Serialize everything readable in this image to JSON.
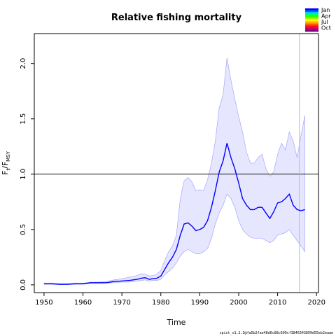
{
  "chart_data": {
    "type": "line",
    "title": "Relative fishing mortality",
    "xlabel": "Time",
    "ylabel": {
      "base": "F",
      "sub1": "t",
      "slash": "/F",
      "sub2": "MSY"
    },
    "xlim": [
      1947.5,
      2020.5
    ],
    "ylim": [
      -0.07,
      2.27
    ],
    "xticks": [
      1950,
      1960,
      1970,
      1980,
      1990,
      2000,
      2010,
      2020
    ],
    "yticks": [
      "0.0",
      "0.5",
      "1.0",
      "1.5",
      "2.0"
    ],
    "reference_line_y": 1.0,
    "vertical_line_x": 2015.6,
    "colors": {
      "series": "#0000ff",
      "band_fill": "#e6e6ff",
      "band_edge": "#9999ff",
      "refline": "#000000",
      "vline": "#bdbdbd"
    },
    "series": [
      {
        "x": [
          1950,
          1952,
          1954,
          1956,
          1958,
          1960,
          1962,
          1964,
          1966,
          1968,
          1970,
          1972,
          1974,
          1975,
          1976,
          1977,
          1978,
          1979,
          1980,
          1981,
          1982,
          1983,
          1984,
          1985,
          1986,
          1987,
          1988,
          1989,
          1990,
          1991,
          1992,
          1993,
          1994,
          1995,
          1996,
          1997,
          1998,
          1999,
          2000,
          2001,
          2002,
          2003,
          2004,
          2005,
          2006,
          2007,
          2008,
          2009,
          2010,
          2011,
          2012,
          2013,
          2014,
          2015,
          2016,
          2017
        ],
        "y": [
          0.01,
          0.01,
          0.005,
          0.005,
          0.01,
          0.01,
          0.02,
          0.02,
          0.02,
          0.03,
          0.035,
          0.04,
          0.05,
          0.06,
          0.065,
          0.05,
          0.055,
          0.06,
          0.08,
          0.14,
          0.2,
          0.25,
          0.32,
          0.45,
          0.55,
          0.56,
          0.53,
          0.49,
          0.5,
          0.52,
          0.58,
          0.7,
          0.85,
          1.02,
          1.12,
          1.28,
          1.15,
          1.05,
          0.92,
          0.78,
          0.72,
          0.68,
          0.68,
          0.7,
          0.7,
          0.65,
          0.6,
          0.66,
          0.74,
          0.75,
          0.78,
          0.82,
          0.72,
          0.68,
          0.67,
          0.68
        ]
      }
    ],
    "band": {
      "x": [
        1950,
        1952,
        1954,
        1956,
        1958,
        1960,
        1962,
        1964,
        1966,
        1968,
        1970,
        1972,
        1974,
        1975,
        1976,
        1977,
        1978,
        1979,
        1980,
        1981,
        1982,
        1983,
        1984,
        1985,
        1986,
        1987,
        1988,
        1989,
        1990,
        1991,
        1992,
        1993,
        1994,
        1995,
        1996,
        1997,
        1998,
        1999,
        2000,
        2001,
        2002,
        2003,
        2004,
        2005,
        2006,
        2007,
        2008,
        2009,
        2010,
        2011,
        2012,
        2013,
        2014,
        2015,
        2016,
        2017
      ],
      "upper": [
        0.015,
        0.015,
        0.01,
        0.01,
        0.015,
        0.015,
        0.025,
        0.025,
        0.03,
        0.045,
        0.055,
        0.07,
        0.085,
        0.1,
        0.095,
        0.08,
        0.085,
        0.095,
        0.13,
        0.22,
        0.3,
        0.35,
        0.45,
        0.78,
        0.94,
        0.97,
        0.93,
        0.85,
        0.86,
        0.85,
        0.95,
        1.1,
        1.3,
        1.6,
        1.72,
        2.05,
        1.85,
        1.68,
        1.52,
        1.38,
        1.2,
        1.1,
        1.1,
        1.15,
        1.18,
        1.05,
        0.98,
        1.02,
        1.18,
        1.28,
        1.22,
        1.38,
        1.3,
        1.15,
        1.35,
        1.53
      ],
      "lower": [
        0.005,
        0.005,
        0.002,
        0.002,
        0.005,
        0.005,
        0.01,
        0.01,
        0.015,
        0.02,
        0.025,
        0.025,
        0.035,
        0.04,
        0.045,
        0.035,
        0.04,
        0.04,
        0.05,
        0.09,
        0.12,
        0.15,
        0.2,
        0.26,
        0.3,
        0.32,
        0.3,
        0.28,
        0.28,
        0.3,
        0.33,
        0.42,
        0.55,
        0.65,
        0.72,
        0.82,
        0.78,
        0.7,
        0.58,
        0.5,
        0.46,
        0.43,
        0.42,
        0.42,
        0.42,
        0.4,
        0.38,
        0.4,
        0.45,
        0.46,
        0.47,
        0.5,
        0.45,
        0.4,
        0.35,
        0.3
      ]
    }
  },
  "legend": {
    "labels": [
      "Jan",
      "Apr",
      "Jul",
      "Oct"
    ],
    "colors": [
      "#0000ff",
      "#0066ff",
      "#00ccff",
      "#00ff66",
      "#33ff00",
      "#99ff00",
      "#ffff00",
      "#ffcc00",
      "#ff8800",
      "#ff3300",
      "#ff0033",
      "#cc0066",
      "#800080"
    ]
  },
  "footnote": "spict_v1.2.3@fa5b2fae48d0c88c609cf3846343899d55eb2eaae"
}
